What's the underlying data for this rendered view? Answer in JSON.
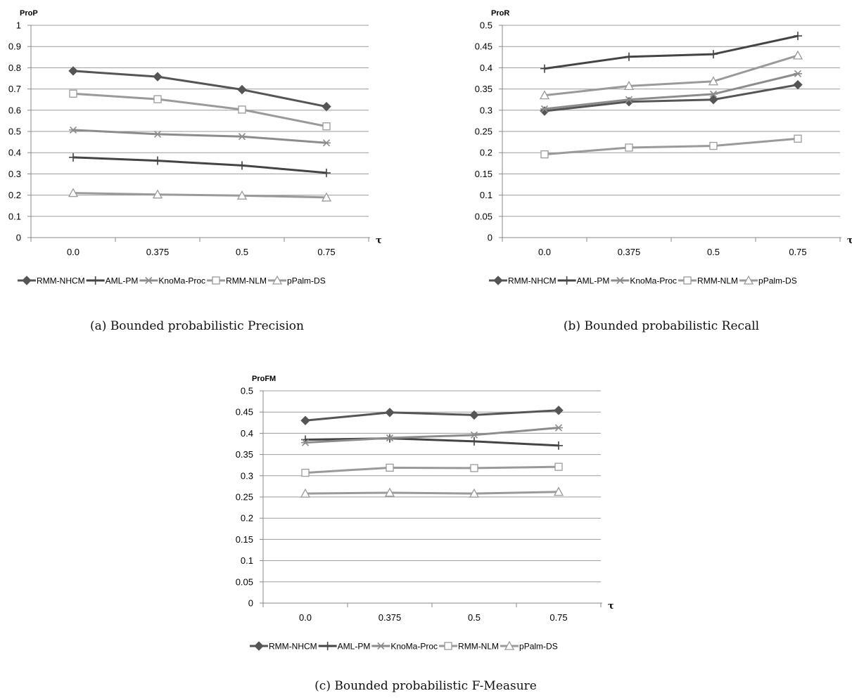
{
  "chart_data": [
    {
      "type": "line",
      "ylabel": "ProP",
      "xlabel": "τ",
      "categories": [
        "0.0",
        "0.375",
        "0.5",
        "0.75"
      ],
      "ylim": [
        0,
        1
      ],
      "yticks": [
        "0",
        "0.1",
        "0.2",
        "0.3",
        "0.4",
        "0.5",
        "0.6",
        "0.7",
        "0.8",
        "0.9",
        "1"
      ],
      "grid": true,
      "legend_position": "bottom",
      "caption": "(a) Bounded probabilistic Precision",
      "series": [
        {
          "name": "RMM-NHCM",
          "values": [
            0.785,
            0.758,
            0.697,
            0.617
          ]
        },
        {
          "name": "AML-PM",
          "values": [
            0.378,
            0.362,
            0.34,
            0.305
          ]
        },
        {
          "name": "KnoMa-Proc",
          "values": [
            0.507,
            0.487,
            0.476,
            0.446
          ]
        },
        {
          "name": "RMM-NLM",
          "values": [
            0.678,
            0.652,
            0.603,
            0.524
          ]
        },
        {
          "name": "pPalm-DS",
          "values": [
            0.21,
            0.203,
            0.198,
            0.189
          ]
        }
      ]
    },
    {
      "type": "line",
      "ylabel": "ProR",
      "xlabel": "τ",
      "categories": [
        "0.0",
        "0.375",
        "0.5",
        "0.75"
      ],
      "ylim": [
        0,
        0.5
      ],
      "yticks": [
        "0",
        "0.05",
        "0.1",
        "0.15",
        "0.2",
        "0.25",
        "0.3",
        "0.35",
        "0.4",
        "0.45",
        "0.5"
      ],
      "grid": true,
      "legend_position": "bottom",
      "caption": "(b) Bounded probabilistic Recall",
      "series": [
        {
          "name": "RMM-NHCM",
          "values": [
            0.298,
            0.32,
            0.325,
            0.36
          ]
        },
        {
          "name": "AML-PM",
          "values": [
            0.398,
            0.426,
            0.432,
            0.475
          ]
        },
        {
          "name": "KnoMa-Proc",
          "values": [
            0.303,
            0.325,
            0.338,
            0.386
          ]
        },
        {
          "name": "RMM-NLM",
          "values": [
            0.196,
            0.212,
            0.216,
            0.233
          ]
        },
        {
          "name": "pPalm-DS",
          "values": [
            0.335,
            0.357,
            0.368,
            0.429
          ]
        }
      ]
    },
    {
      "type": "line",
      "ylabel": "ProFM",
      "xlabel": "τ",
      "categories": [
        "0.0",
        "0.375",
        "0.5",
        "0.75"
      ],
      "ylim": [
        0,
        0.5
      ],
      "yticks": [
        "0",
        "0.05",
        "0.1",
        "0.15",
        "0.2",
        "0.25",
        "0.3",
        "0.35",
        "0.4",
        "0.45",
        "0.5"
      ],
      "grid": true,
      "legend_position": "bottom",
      "caption": "(c) Bounded probabilistic F-Measure",
      "series": [
        {
          "name": "RMM-NHCM",
          "values": [
            0.43,
            0.449,
            0.443,
            0.454
          ]
        },
        {
          "name": "AML-PM",
          "values": [
            0.385,
            0.388,
            0.381,
            0.371
          ]
        },
        {
          "name": "KnoMa-Proc",
          "values": [
            0.378,
            0.389,
            0.396,
            0.413
          ]
        },
        {
          "name": "RMM-NLM",
          "values": [
            0.307,
            0.319,
            0.318,
            0.321
          ]
        },
        {
          "name": "pPalm-DS",
          "values": [
            0.258,
            0.26,
            0.258,
            0.262
          ]
        }
      ]
    }
  ],
  "series_styles": [
    {
      "color": "#555555",
      "marker": "diamond",
      "marker_fill": "#555555"
    },
    {
      "color": "#444444",
      "marker": "plus",
      "marker_fill": "#444444"
    },
    {
      "color": "#8c8c8c",
      "marker": "asterisk",
      "marker_fill": "#8c8c8c"
    },
    {
      "color": "#9a9a9a",
      "marker": "square",
      "marker_fill": "#ffffff"
    },
    {
      "color": "#9a9a9a",
      "marker": "triangle",
      "marker_fill": "#ffffff"
    }
  ]
}
